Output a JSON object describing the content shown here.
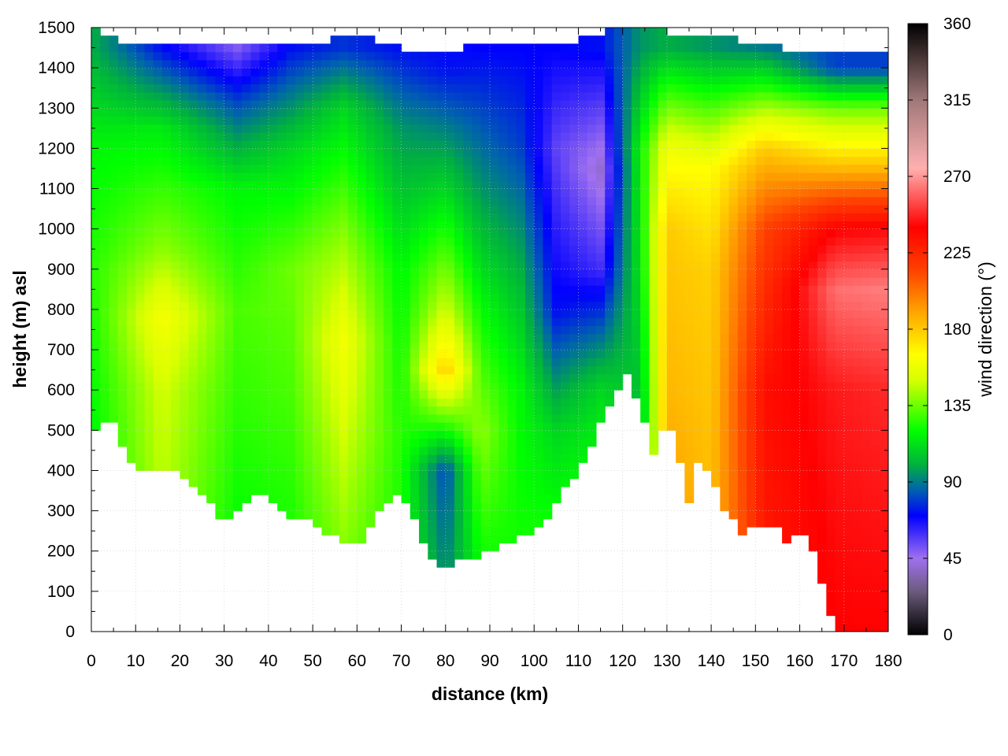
{
  "chart_data": {
    "type": "heatmap",
    "title": "",
    "xlabel": "distance (km)",
    "ylabel": "height (m) asl",
    "colorbar_label": "wind direction (°)",
    "xlim": [
      0,
      180
    ],
    "ylim": [
      0,
      1500
    ],
    "x_ticks": [
      0,
      10,
      20,
      30,
      40,
      50,
      60,
      70,
      80,
      90,
      100,
      110,
      120,
      130,
      140,
      150,
      160,
      170,
      180
    ],
    "y_ticks": [
      0,
      100,
      200,
      300,
      400,
      500,
      600,
      700,
      800,
      900,
      1000,
      1100,
      1200,
      1300,
      1400,
      1500
    ],
    "colorbar_range": [
      0,
      360
    ],
    "colorbar_ticks": [
      0,
      45,
      90,
      135,
      180,
      225,
      270,
      315,
      360
    ],
    "grid": true,
    "colormap": [
      {
        "value": 0,
        "color": "#000000"
      },
      {
        "value": 25,
        "color": "#6a5a7a"
      },
      {
        "value": 45,
        "color": "#a070f0"
      },
      {
        "value": 70,
        "color": "#0000ff"
      },
      {
        "value": 85,
        "color": "#0060b0"
      },
      {
        "value": 100,
        "color": "#00b040"
      },
      {
        "value": 120,
        "color": "#00ff00"
      },
      {
        "value": 150,
        "color": "#d8ff00"
      },
      {
        "value": 165,
        "color": "#ffff00"
      },
      {
        "value": 190,
        "color": "#ffa500"
      },
      {
        "value": 215,
        "color": "#ff4000"
      },
      {
        "value": 240,
        "color": "#ff0000"
      },
      {
        "value": 275,
        "color": "#ffb0b0"
      },
      {
        "value": 315,
        "color": "#a07878"
      },
      {
        "value": 360,
        "color": "#000000"
      }
    ],
    "terrain_height": [
      {
        "x": 0,
        "h": 470
      },
      {
        "x": 2,
        "h": 530
      },
      {
        "x": 5,
        "h": 520
      },
      {
        "x": 7,
        "h": 460
      },
      {
        "x": 10,
        "h": 405
      },
      {
        "x": 14,
        "h": 410
      },
      {
        "x": 20,
        "h": 400
      },
      {
        "x": 25,
        "h": 340
      },
      {
        "x": 27,
        "h": 320
      },
      {
        "x": 30,
        "h": 270
      },
      {
        "x": 33,
        "h": 305
      },
      {
        "x": 38,
        "h": 340
      },
      {
        "x": 42,
        "h": 320
      },
      {
        "x": 45,
        "h": 290
      },
      {
        "x": 50,
        "h": 270
      },
      {
        "x": 53,
        "h": 245
      },
      {
        "x": 57,
        "h": 230
      },
      {
        "x": 60,
        "h": 205
      },
      {
        "x": 63,
        "h": 260
      },
      {
        "x": 66,
        "h": 310
      },
      {
        "x": 70,
        "h": 345
      },
      {
        "x": 73,
        "h": 280
      },
      {
        "x": 76,
        "h": 200
      },
      {
        "x": 79,
        "h": 165
      },
      {
        "x": 82,
        "h": 150
      },
      {
        "x": 84,
        "h": 195
      },
      {
        "x": 86,
        "h": 170
      },
      {
        "x": 90,
        "h": 205
      },
      {
        "x": 95,
        "h": 225
      },
      {
        "x": 99,
        "h": 240
      },
      {
        "x": 101,
        "h": 260
      },
      {
        "x": 105,
        "h": 320
      },
      {
        "x": 110,
        "h": 400
      },
      {
        "x": 114,
        "h": 490
      },
      {
        "x": 118,
        "h": 590
      },
      {
        "x": 121,
        "h": 640
      },
      {
        "x": 124,
        "h": 560
      },
      {
        "x": 127,
        "h": 445
      },
      {
        "x": 130,
        "h": 540
      },
      {
        "x": 133,
        "h": 420
      },
      {
        "x": 135,
        "h": 330
      },
      {
        "x": 137,
        "h": 420
      },
      {
        "x": 140,
        "h": 400
      },
      {
        "x": 143,
        "h": 310
      },
      {
        "x": 147,
        "h": 250
      },
      {
        "x": 152,
        "h": 260
      },
      {
        "x": 155,
        "h": 255
      },
      {
        "x": 157,
        "h": 215
      },
      {
        "x": 159,
        "h": 245
      },
      {
        "x": 162,
        "h": 230
      },
      {
        "x": 165,
        "h": 130
      },
      {
        "x": 168,
        "h": 10
      },
      {
        "x": 170,
        "h": 0
      },
      {
        "x": 180,
        "h": 0
      }
    ],
    "direction_profiles": [
      {
        "x": 0,
        "levels": [
          {
            "h": 0,
            "dir": 110
          },
          {
            "h": 600,
            "dir": 120
          },
          {
            "h": 900,
            "dir": 125
          },
          {
            "h": 1200,
            "dir": 118
          },
          {
            "h": 1450,
            "dir": 100
          }
        ]
      },
      {
        "x": 16,
        "levels": [
          {
            "h": 0,
            "dir": 140
          },
          {
            "h": 600,
            "dir": 150
          },
          {
            "h": 780,
            "dir": 162
          },
          {
            "h": 950,
            "dir": 140
          },
          {
            "h": 1250,
            "dir": 115
          },
          {
            "h": 1450,
            "dir": 72
          }
        ]
      },
      {
        "x": 33,
        "levels": [
          {
            "h": 0,
            "dir": 115
          },
          {
            "h": 500,
            "dir": 125
          },
          {
            "h": 800,
            "dir": 130
          },
          {
            "h": 1100,
            "dir": 118
          },
          {
            "h": 1320,
            "dir": 80
          },
          {
            "h": 1450,
            "dir": 50
          }
        ]
      },
      {
        "x": 45,
        "levels": [
          {
            "h": 0,
            "dir": 118
          },
          {
            "h": 600,
            "dir": 130
          },
          {
            "h": 900,
            "dir": 135
          },
          {
            "h": 1200,
            "dir": 110
          },
          {
            "h": 1450,
            "dir": 72
          }
        ]
      },
      {
        "x": 57,
        "levels": [
          {
            "h": 0,
            "dir": 130
          },
          {
            "h": 500,
            "dir": 150
          },
          {
            "h": 720,
            "dir": 160
          },
          {
            "h": 1000,
            "dir": 138
          },
          {
            "h": 1300,
            "dir": 110
          },
          {
            "h": 1450,
            "dir": 78
          }
        ]
      },
      {
        "x": 70,
        "levels": [
          {
            "h": 0,
            "dir": 120
          },
          {
            "h": 500,
            "dir": 125
          },
          {
            "h": 900,
            "dir": 118
          },
          {
            "h": 1250,
            "dir": 95
          },
          {
            "h": 1450,
            "dir": 72
          }
        ]
      },
      {
        "x": 80,
        "levels": [
          {
            "h": 0,
            "dir": 100
          },
          {
            "h": 400,
            "dir": 80
          },
          {
            "h": 650,
            "dir": 180
          },
          {
            "h": 800,
            "dir": 150
          },
          {
            "h": 1100,
            "dir": 110
          },
          {
            "h": 1400,
            "dir": 72
          }
        ]
      },
      {
        "x": 88,
        "levels": [
          {
            "h": 0,
            "dir": 110
          },
          {
            "h": 500,
            "dir": 140
          },
          {
            "h": 800,
            "dir": 120
          },
          {
            "h": 1100,
            "dir": 95
          },
          {
            "h": 1450,
            "dir": 70
          }
        ]
      },
      {
        "x": 97,
        "levels": [
          {
            "h": 0,
            "dir": 125
          },
          {
            "h": 600,
            "dir": 118
          },
          {
            "h": 900,
            "dir": 100
          },
          {
            "h": 1200,
            "dir": 80
          },
          {
            "h": 1450,
            "dir": 70
          }
        ]
      },
      {
        "x": 105,
        "levels": [
          {
            "h": 0,
            "dir": 135
          },
          {
            "h": 500,
            "dir": 110
          },
          {
            "h": 800,
            "dir": 72
          },
          {
            "h": 1200,
            "dir": 55
          },
          {
            "h": 1450,
            "dir": 70
          }
        ]
      },
      {
        "x": 115,
        "levels": [
          {
            "h": 0,
            "dir": 140
          },
          {
            "h": 600,
            "dir": 110
          },
          {
            "h": 900,
            "dir": 60
          },
          {
            "h": 1150,
            "dir": 40
          },
          {
            "h": 1450,
            "dir": 72
          }
        ]
      },
      {
        "x": 124,
        "levels": [
          {
            "h": 0,
            "dir": 110
          },
          {
            "h": 500,
            "dir": 100
          },
          {
            "h": 900,
            "dir": 115
          },
          {
            "h": 1200,
            "dir": 120
          },
          {
            "h": 1450,
            "dir": 95
          }
        ]
      },
      {
        "x": 130,
        "levels": [
          {
            "h": 0,
            "dir": 200
          },
          {
            "h": 600,
            "dir": 185
          },
          {
            "h": 1000,
            "dir": 180
          },
          {
            "h": 1200,
            "dir": 160
          },
          {
            "h": 1350,
            "dir": 125
          },
          {
            "h": 1450,
            "dir": 100
          }
        ]
      },
      {
        "x": 140,
        "levels": [
          {
            "h": 0,
            "dir": 185
          },
          {
            "h": 500,
            "dir": 182
          },
          {
            "h": 900,
            "dir": 178
          },
          {
            "h": 1150,
            "dir": 165
          },
          {
            "h": 1300,
            "dir": 130
          },
          {
            "h": 1450,
            "dir": 95
          }
        ]
      },
      {
        "x": 152,
        "levels": [
          {
            "h": 0,
            "dir": 228
          },
          {
            "h": 600,
            "dir": 235
          },
          {
            "h": 1000,
            "dir": 215
          },
          {
            "h": 1200,
            "dir": 180
          },
          {
            "h": 1350,
            "dir": 125
          },
          {
            "h": 1450,
            "dir": 90
          }
        ]
      },
      {
        "x": 168,
        "levels": [
          {
            "h": 0,
            "dir": 240
          },
          {
            "h": 600,
            "dir": 245
          },
          {
            "h": 850,
            "dir": 262
          },
          {
            "h": 1000,
            "dir": 240
          },
          {
            "h": 1150,
            "dir": 185
          },
          {
            "h": 1300,
            "dir": 135
          },
          {
            "h": 1400,
            "dir": 80
          }
        ]
      },
      {
        "x": 180,
        "levels": [
          {
            "h": 0,
            "dir": 240
          },
          {
            "h": 600,
            "dir": 248
          },
          {
            "h": 850,
            "dir": 265
          },
          {
            "h": 1000,
            "dir": 242
          },
          {
            "h": 1150,
            "dir": 185
          },
          {
            "h": 1300,
            "dir": 135
          },
          {
            "h": 1400,
            "dir": 80
          }
        ]
      }
    ],
    "top_boundary": [
      {
        "x": 0,
        "h": 1500
      },
      {
        "x": 5,
        "h": 1470
      },
      {
        "x": 10,
        "h": 1460
      },
      {
        "x": 20,
        "h": 1465
      },
      {
        "x": 30,
        "h": 1450
      },
      {
        "x": 40,
        "h": 1470
      },
      {
        "x": 50,
        "h": 1460
      },
      {
        "x": 60,
        "h": 1480
      },
      {
        "x": 70,
        "h": 1450
      },
      {
        "x": 80,
        "h": 1440
      },
      {
        "x": 90,
        "h": 1470
      },
      {
        "x": 100,
        "h": 1455
      },
      {
        "x": 110,
        "h": 1470
      },
      {
        "x": 120,
        "h": 1500
      },
      {
        "x": 130,
        "h": 1490
      },
      {
        "x": 140,
        "h": 1480
      },
      {
        "x": 150,
        "h": 1460
      },
      {
        "x": 160,
        "h": 1440
      },
      {
        "x": 168,
        "h": 1435
      },
      {
        "x": 180,
        "h": 1435
      }
    ]
  }
}
